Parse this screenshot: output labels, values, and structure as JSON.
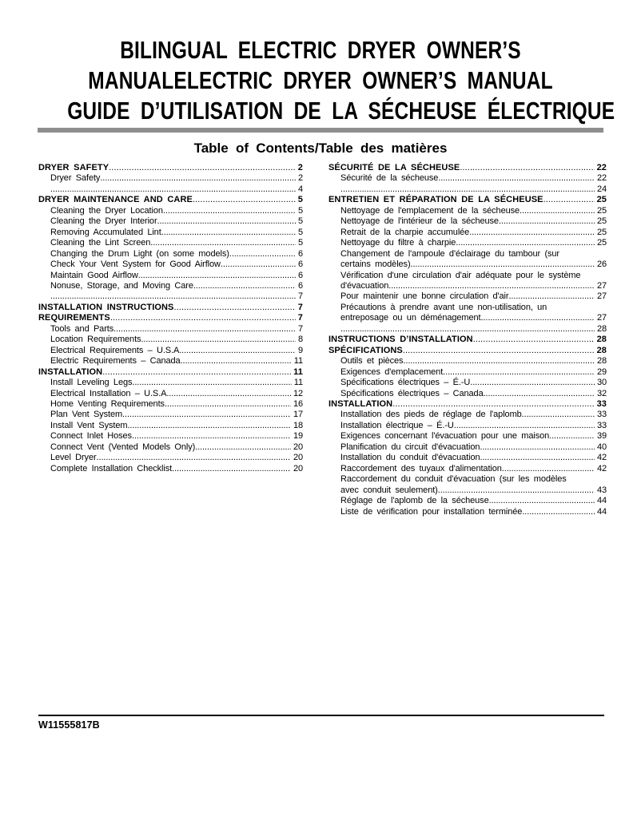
{
  "doc": {
    "title_lines": [
      "BILINGUAL ELECTRIC DRYER OWNER’S",
      "MANUALELECTRIC DRYER OWNER’S MANUAL",
      "GUIDE D’UTILISATION DE LA SÉCHEUSE ÉLECTRIQUE"
    ],
    "toc_heading": "Table of Contents/Table des matières",
    "doc_number": "W11555817B",
    "colors": {
      "divider_gray": "#8e8e8e",
      "text_black": "#000000"
    }
  },
  "toc": {
    "left": [
      {
        "text": "DRYER SAFETY",
        "page": "2",
        "bold": true,
        "indent": false
      },
      {
        "text": "Dryer Safety",
        "page": "2",
        "bold": false,
        "indent": true
      },
      {
        "text": "",
        "page": "4",
        "bold": false,
        "indent": true
      },
      {
        "text": "DRYER MAINTENANCE AND CARE",
        "page": "5",
        "bold": true,
        "indent": false
      },
      {
        "text": "Cleaning the Dryer Location",
        "page": "5",
        "bold": false,
        "indent": true
      },
      {
        "text": "Cleaning the Dryer Interior",
        "page": "5",
        "bold": false,
        "indent": true
      },
      {
        "text": "Removing Accumulated Lint",
        "page": "5",
        "bold": false,
        "indent": true
      },
      {
        "text": "Cleaning the Lint Screen",
        "page": "5",
        "bold": false,
        "indent": true
      },
      {
        "text": "Changing the Drum Light (on some models)",
        "page": "6",
        "bold": false,
        "indent": true
      },
      {
        "text": "Check Your Vent System for Good Airflow",
        "page": "6",
        "bold": false,
        "indent": true
      },
      {
        "text": "Maintain Good Airflow",
        "page": "6",
        "bold": false,
        "indent": true
      },
      {
        "text": "Nonuse, Storage, and Moving Care",
        "page": "6",
        "bold": false,
        "indent": true
      },
      {
        "text": "",
        "page": "7",
        "bold": false,
        "indent": true
      },
      {
        "text": "INSTALLATION INSTRUCTIONS",
        "page": "7",
        "bold": true,
        "indent": false
      },
      {
        "text": "REQUIREMENTS",
        "page": "7",
        "bold": true,
        "indent": false
      },
      {
        "text": "Tools and Parts",
        "page": "7",
        "bold": false,
        "indent": true
      },
      {
        "text": "Location Requirements",
        "page": "8",
        "bold": false,
        "indent": true
      },
      {
        "text": "Electrical Requirements – U.S.A",
        "page": "9",
        "bold": false,
        "indent": true
      },
      {
        "text": "Electric Requirements – Canada",
        "page": "11",
        "bold": false,
        "indent": true
      },
      {
        "text": "INSTALLATION",
        "page": "11",
        "bold": true,
        "indent": false
      },
      {
        "text": "Install Leveling Legs",
        "page": "11",
        "bold": false,
        "indent": true
      },
      {
        "text": "Electrical Installation – U.S.A",
        "page": "12",
        "bold": false,
        "indent": true
      },
      {
        "text": "Home Venting Requirements",
        "page": "16",
        "bold": false,
        "indent": true
      },
      {
        "text": "Plan Vent System",
        "page": "17",
        "bold": false,
        "indent": true
      },
      {
        "text": "Install Vent System",
        "page": "18",
        "bold": false,
        "indent": true
      },
      {
        "text": "Connect Inlet Hoses",
        "page": "19",
        "bold": false,
        "indent": true
      },
      {
        "text": "Connect Vent (Vented Models Only)",
        "page": "20",
        "bold": false,
        "indent": true
      },
      {
        "text": "Level Dryer",
        "page": "20",
        "bold": false,
        "indent": true
      },
      {
        "text": "Complete Installation Checklist",
        "page": "20",
        "bold": false,
        "indent": true
      }
    ],
    "right": [
      {
        "text": "SÉCURITÉ DE LA SÉCHEUSE",
        "page": "22",
        "bold": true,
        "indent": false
      },
      {
        "text": "Sécurité de la sécheuse",
        "page": "22",
        "bold": false,
        "indent": true
      },
      {
        "text": "",
        "page": "24",
        "bold": false,
        "indent": true
      },
      {
        "text": "ENTRETIEN ET RÉPARATION DE LA SÉCHEUSE",
        "page": "25",
        "bold": true,
        "indent": false
      },
      {
        "text": "Nettoyage de l'emplacement de la sécheuse",
        "page": "25",
        "bold": false,
        "indent": true
      },
      {
        "text": "Nettoyage de l'intérieur de la sécheuse",
        "page": "25",
        "bold": false,
        "indent": true
      },
      {
        "text": "Retrait de la charpie accumulée",
        "page": "25",
        "bold": false,
        "indent": true
      },
      {
        "text": "Nettoyage du filtre à charpie",
        "page": "25",
        "bold": false,
        "indent": true
      },
      {
        "text": "Changement de l'ampoule d'éclairage du tambour (sur",
        "page": null,
        "bold": false,
        "indent": true
      },
      {
        "text": "certains modèles)",
        "page": "26",
        "bold": false,
        "indent": true
      },
      {
        "text": "Vérification d'une circulation d'air adéquate pour le système",
        "page": null,
        "bold": false,
        "indent": true
      },
      {
        "text": "d'évacuation",
        "page": "27",
        "bold": false,
        "indent": true
      },
      {
        "text": "Pour maintenir une bonne circulation d'air",
        "page": "27",
        "bold": false,
        "indent": true
      },
      {
        "text": "Précautions à prendre avant une non-utilisation, un",
        "page": null,
        "bold": false,
        "indent": true
      },
      {
        "text": "entreposage ou un déménagement",
        "page": "27",
        "bold": false,
        "indent": true
      },
      {
        "text": "",
        "page": "28",
        "bold": false,
        "indent": true
      },
      {
        "text": "INSTRUCTIONS D’INSTALLATION",
        "page": "28",
        "bold": true,
        "indent": false
      },
      {
        "text": "SPÉCIFICATIONS",
        "page": "28",
        "bold": true,
        "indent": false
      },
      {
        "text": "Outils et pièces",
        "page": "28",
        "bold": false,
        "indent": true
      },
      {
        "text": "Exigences d'emplacement",
        "page": "29",
        "bold": false,
        "indent": true
      },
      {
        "text": "Spécifications électriques – É.-U.",
        "page": "30",
        "bold": false,
        "indent": true
      },
      {
        "text": "Spécifications électriques – Canada",
        "page": "32",
        "bold": false,
        "indent": true
      },
      {
        "text": "INSTALLATION",
        "page": "33",
        "bold": true,
        "indent": false
      },
      {
        "text": "Installation des pieds de réglage de l'aplomb",
        "page": "33",
        "bold": false,
        "indent": true
      },
      {
        "text": "Installation électrique – É.-U.",
        "page": "33",
        "bold": false,
        "indent": true
      },
      {
        "text": "Exigences concernant l'évacuation pour une maison",
        "page": "39",
        "bold": false,
        "indent": true
      },
      {
        "text": "Planification du circuit d'évacuation",
        "page": "40",
        "bold": false,
        "indent": true
      },
      {
        "text": "Installation du conduit d'évacuation",
        "page": "42",
        "bold": false,
        "indent": true
      },
      {
        "text": "Raccordement des tuyaux d'alimentation",
        "page": "42",
        "bold": false,
        "indent": true
      },
      {
        "text": "Raccordement du conduit d'évacuation (sur les modèles",
        "page": null,
        "bold": false,
        "indent": true
      },
      {
        "text": "avec conduit seulement)",
        "page": "43",
        "bold": false,
        "indent": true
      },
      {
        "text": "Réglage de l'aplomb de la sécheuse",
        "page": "44",
        "bold": false,
        "indent": true
      },
      {
        "text": "Liste de vérification pour installation terminée",
        "page": "44",
        "bold": false,
        "indent": true
      }
    ]
  }
}
